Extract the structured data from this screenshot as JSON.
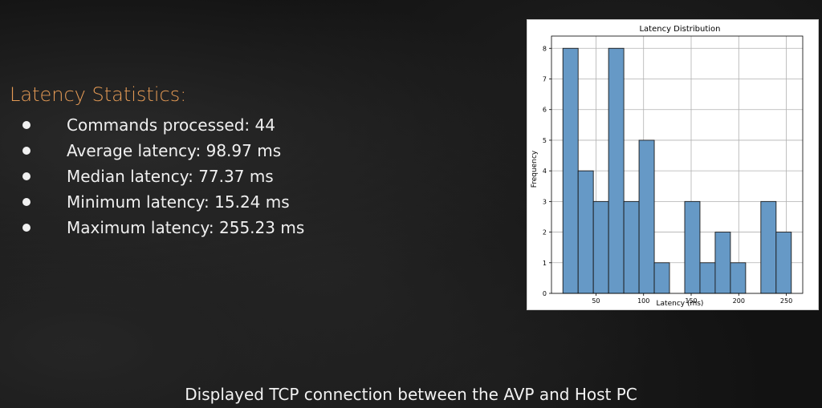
{
  "slide": {
    "title": "Latency Statistics:",
    "stats": [
      "Commands processed: 44",
      "Average latency: 98.97 ms",
      "Median latency: 77.37 ms",
      "Minimum latency: 15.24 ms",
      "Maximum latency: 255.23 ms"
    ],
    "caption": "Displayed TCP connection between the AVP and Host PC"
  },
  "chart_data": {
    "type": "bar",
    "title": "Latency Distribution",
    "xlabel": "Latency (ms)",
    "ylabel": "Frequency",
    "bins": [
      [
        15.24,
        31.24
      ],
      [
        31.24,
        47.24
      ],
      [
        47.24,
        63.24
      ],
      [
        63.24,
        79.24
      ],
      [
        79.24,
        95.24
      ],
      [
        95.24,
        111.24
      ],
      [
        111.24,
        127.24
      ],
      [
        127.24,
        143.24
      ],
      [
        143.24,
        159.24
      ],
      [
        159.24,
        175.24
      ],
      [
        175.24,
        191.24
      ],
      [
        191.24,
        207.24
      ],
      [
        207.24,
        223.24
      ],
      [
        223.24,
        239.24
      ],
      [
        239.24,
        255.23
      ]
    ],
    "values": [
      8,
      4,
      3,
      8,
      3,
      5,
      1,
      0,
      3,
      1,
      2,
      1,
      0,
      3,
      2
    ],
    "xlim": [
      3.24,
      267.23
    ],
    "ylim": [
      0,
      8.4
    ],
    "xticks": [
      50,
      100,
      150,
      200,
      250
    ],
    "yticks": [
      0,
      1,
      2,
      3,
      4,
      5,
      6,
      7,
      8
    ],
    "grid": true,
    "colors": {
      "bar": "#6699c6",
      "edge": "#1a1a1a"
    }
  }
}
